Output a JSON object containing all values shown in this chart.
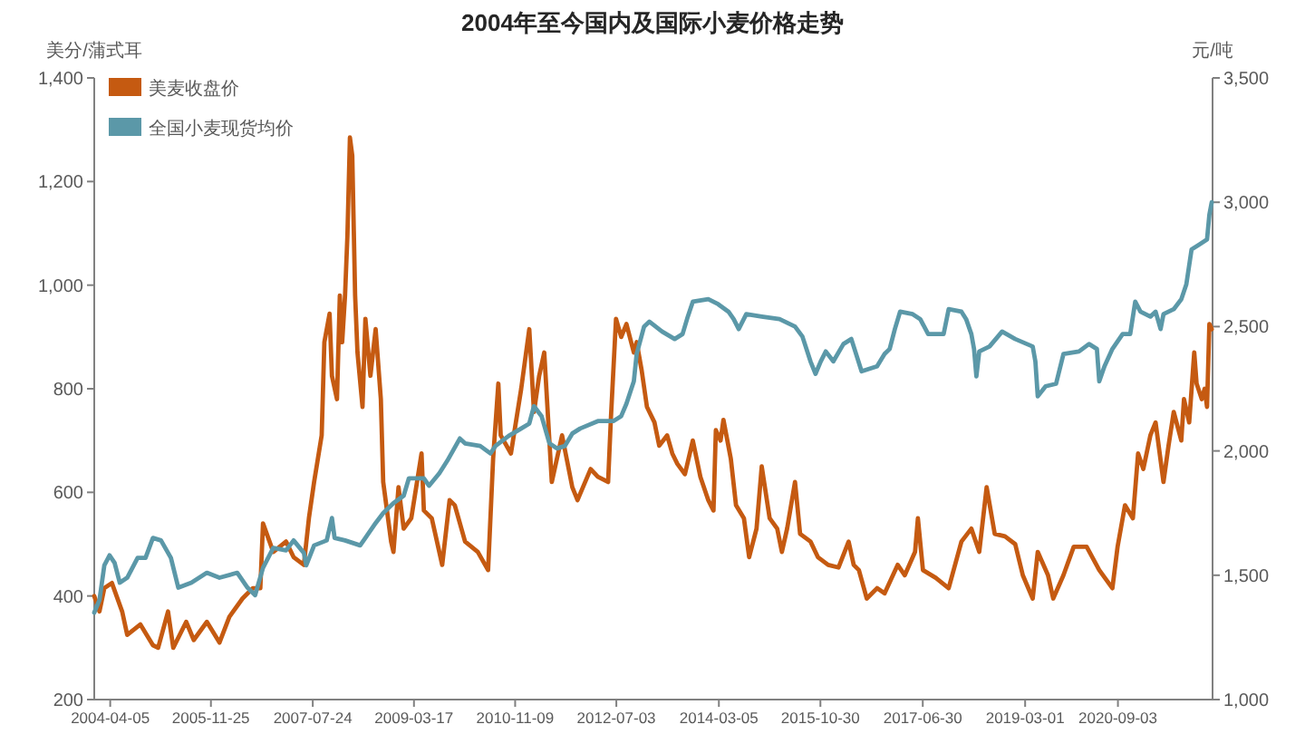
{
  "chart_data": {
    "type": "line",
    "title": "2004年至今国内及国际小麦价格走势",
    "ylabel": "美分/蒲式耳",
    "y2label": "元/吨",
    "xlim": [
      "2004-01-01",
      "2022-03-20"
    ],
    "xticks": [
      "2004-04-05",
      "2005-11-25",
      "2007-07-24",
      "2009-03-17",
      "2010-11-09",
      "2012-07-03",
      "2014-03-05",
      "2015-10-30",
      "2017-06-30",
      "2019-03-01",
      "2020-09-03"
    ],
    "ylim": [
      200,
      1400
    ],
    "yticks": [
      200,
      400,
      600,
      800,
      {
        "value": 1000,
        "label": "1,000"
      },
      {
        "value": 1200,
        "label": "1,200"
      },
      {
        "value": 1400,
        "label": "1,400"
      }
    ],
    "y2lim": [
      1000,
      3500
    ],
    "y2ticks": [
      {
        "value": 1000,
        "label": "1,000"
      },
      {
        "value": 1500,
        "label": "1,500"
      },
      {
        "value": 2000,
        "label": "2,000"
      },
      {
        "value": 2500,
        "label": "2,500"
      },
      {
        "value": 3000,
        "label": "3,000"
      },
      {
        "value": 3500,
        "label": "3,500"
      }
    ],
    "legend": "top left",
    "line_style": "solid",
    "series": [
      {
        "name": "美麦收盘价",
        "color": "#c55a11",
        "x": [
          "2004-01-01",
          "2004-02-01",
          "2004-03-01",
          "2004-04-15",
          "2004-06-15",
          "2004-07-15",
          "2004-10-01",
          "2004-12-15",
          "2005-01-15",
          "2005-03-15",
          "2005-04-15",
          "2005-07-01",
          "2005-08-15",
          "2005-11-01",
          "2006-01-15",
          "2006-03-15",
          "2006-06-01",
          "2006-08-01",
          "2006-09-15",
          "2006-10-01",
          "2006-12-01",
          "2007-02-15",
          "2007-04-01",
          "2007-06-01",
          "2007-07-01",
          "2007-08-01",
          "2007-09-15",
          "2007-10-01",
          "2007-11-01",
          "2007-11-15",
          "2007-12-15",
          "2008-01-01",
          "2008-01-15",
          "2008-02-01",
          "2008-02-15",
          "2008-03-01",
          "2008-03-15",
          "2008-04-01",
          "2008-04-15",
          "2008-05-15",
          "2008-06-01",
          "2008-07-01",
          "2008-08-01",
          "2008-09-01",
          "2008-09-15",
          "2008-11-01",
          "2008-11-15",
          "2008-12-15",
          "2009-01-15",
          "2009-03-01",
          "2009-05-01",
          "2009-05-15",
          "2009-07-01",
          "2009-09-01",
          "2009-10-15",
          "2009-11-15",
          "2010-01-15",
          "2010-04-01",
          "2010-06-01",
          "2010-07-01",
          "2010-08-01",
          "2010-08-15",
          "2010-10-15",
          "2010-12-15",
          "2011-02-01",
          "2011-03-01",
          "2011-04-01",
          "2011-05-01",
          "2011-06-15",
          "2011-08-15",
          "2011-10-15",
          "2011-11-15",
          "2012-02-01",
          "2012-03-15",
          "2012-05-15",
          "2012-06-01",
          "2012-07-01",
          "2012-08-01",
          "2012-09-01",
          "2012-10-15",
          "2012-11-01",
          "2012-12-01",
          "2013-01-01",
          "2013-02-15",
          "2013-03-15",
          "2013-05-01",
          "2013-06-01",
          "2013-07-01",
          "2013-08-15",
          "2013-10-01",
          "2013-11-15",
          "2014-01-01",
          "2014-02-01",
          "2014-02-15",
          "2014-03-15",
          "2014-04-01",
          "2014-05-15",
          "2014-06-15",
          "2014-08-01",
          "2014-09-01",
          "2014-10-15",
          "2014-11-15",
          "2015-01-01",
          "2015-02-15",
          "2015-03-15",
          "2015-04-15",
          "2015-06-01",
          "2015-07-01",
          "2015-09-01",
          "2015-10-15",
          "2015-12-15",
          "2016-02-15",
          "2016-04-15",
          "2016-05-15",
          "2016-06-15",
          "2016-08-01",
          "2016-10-01",
          "2016-11-15",
          "2017-02-01",
          "2017-03-15",
          "2017-05-15",
          "2017-06-01",
          "2017-07-01",
          "2017-09-15",
          "2017-12-01",
          "2018-02-15",
          "2018-04-15",
          "2018-06-01",
          "2018-07-15",
          "2018-09-01",
          "2018-11-01",
          "2019-01-01",
          "2019-02-15",
          "2019-04-15",
          "2019-05-15",
          "2019-07-15",
          "2019-08-15",
          "2019-10-15",
          "2019-12-15",
          "2020-03-01",
          "2020-05-15",
          "2020-08-01",
          "2020-09-01",
          "2020-10-15",
          "2020-12-01",
          "2021-01-01",
          "2021-02-01",
          "2021-03-15",
          "2021-04-15",
          "2021-06-01",
          "2021-07-01",
          "2021-08-01",
          "2021-09-15",
          "2021-10-01",
          "2021-11-01",
          "2021-12-01",
          "2021-12-15",
          "2022-01-15",
          "2022-02-01",
          "2022-02-15",
          "2022-03-01",
          "2022-03-15"
        ],
        "values": [
          400,
          370,
          415,
          425,
          370,
          325,
          345,
          305,
          300,
          370,
          300,
          350,
          315,
          350,
          310,
          360,
          395,
          415,
          415,
          540,
          485,
          505,
          475,
          460,
          550,
          620,
          710,
          890,
          945,
          825,
          780,
          980,
          890,
          980,
          1095,
          1285,
          1250,
          980,
          870,
          765,
          935,
          825,
          915,
          780,
          620,
          505,
          485,
          610,
          530,
          550,
          675,
          565,
          550,
          460,
          585,
          575,
          505,
          485,
          450,
          665,
          810,
          710,
          675,
          800,
          915,
          755,
          825,
          870,
          620,
          710,
          610,
          585,
          645,
          630,
          620,
          745,
          935,
          900,
          925,
          870,
          890,
          835,
          765,
          735,
          690,
          710,
          675,
          655,
          635,
          700,
          630,
          585,
          565,
          720,
          700,
          740,
          665,
          575,
          550,
          475,
          530,
          650,
          550,
          530,
          485,
          530,
          620,
          520,
          505,
          475,
          460,
          455,
          505,
          460,
          450,
          395,
          415,
          405,
          460,
          440,
          485,
          550,
          450,
          435,
          415,
          505,
          530,
          485,
          610,
          520,
          515,
          500,
          440,
          395,
          485,
          440,
          395,
          440,
          495,
          495,
          450,
          415,
          495,
          575,
          550,
          675,
          645,
          710,
          735,
          620,
          690,
          755,
          700,
          780,
          735,
          870,
          810,
          780,
          800,
          765,
          925,
          915
        ]
      },
      {
        "name": "全国小麦现货均价",
        "color": "#5b98a8",
        "axis": "y2",
        "x": [
          "2004-01-01",
          "2004-02-01",
          "2004-03-01",
          "2004-04-01",
          "2004-05-01",
          "2004-06-01",
          "2004-07-15",
          "2004-09-15",
          "2004-11-01",
          "2004-12-15",
          "2005-02-01",
          "2005-04-01",
          "2005-05-15",
          "2005-08-01",
          "2005-11-01",
          "2006-01-15",
          "2006-05-01",
          "2006-07-01",
          "2006-08-15",
          "2006-10-01",
          "2006-12-01",
          "2007-02-15",
          "2007-04-01",
          "2007-06-01",
          "2007-06-15",
          "2007-08-01",
          "2007-10-15",
          "2007-11-15",
          "2007-12-01",
          "2008-02-01",
          "2008-05-01",
          "2008-06-01",
          "2008-08-01",
          "2008-09-15",
          "2008-11-15",
          "2009-01-15",
          "2009-02-15",
          "2009-05-15",
          "2009-06-15",
          "2009-08-15",
          "2009-10-01",
          "2009-12-15",
          "2010-01-15",
          "2010-04-15",
          "2010-06-15",
          "2010-07-15",
          "2010-10-01",
          "2010-12-15",
          "2011-02-01",
          "2011-03-01",
          "2011-04-15",
          "2011-06-01",
          "2011-07-15",
          "2011-09-01",
          "2011-10-15",
          "2011-12-01",
          "2012-03-15",
          "2012-06-15",
          "2012-08-01",
          "2012-09-01",
          "2012-10-15",
          "2012-11-01",
          "2012-12-15",
          "2013-01-15",
          "2013-04-01",
          "2013-06-15",
          "2013-08-01",
          "2013-09-01",
          "2013-10-01",
          "2014-01-01",
          "2014-03-01",
          "2014-05-01",
          "2014-06-01",
          "2014-07-01",
          "2014-08-15",
          "2014-11-15",
          "2015-03-01",
          "2015-06-01",
          "2015-07-15",
          "2015-09-01",
          "2015-10-01",
          "2015-11-01",
          "2015-12-01",
          "2016-01-15",
          "2016-03-15",
          "2016-05-01",
          "2016-07-01",
          "2016-10-01",
          "2016-11-15",
          "2016-12-15",
          "2017-01-15",
          "2017-02-15",
          "2017-05-01",
          "2017-06-15",
          "2017-08-01",
          "2017-11-01",
          "2017-12-01",
          "2018-02-15",
          "2018-03-15",
          "2018-04-15",
          "2018-05-01",
          "2018-05-15",
          "2018-06-01",
          "2018-08-01",
          "2018-10-15",
          "2019-01-01",
          "2019-04-15",
          "2019-05-01",
          "2019-05-15",
          "2019-07-01",
          "2019-09-01",
          "2019-10-15",
          "2020-01-15",
          "2020-03-15",
          "2020-05-01",
          "2020-05-15",
          "2020-06-15",
          "2020-08-01",
          "2020-10-01",
          "2020-11-15",
          "2020-12-15",
          "2021-01-15",
          "2021-03-15",
          "2021-04-15",
          "2021-05-15",
          "2021-06-01",
          "2021-08-01",
          "2021-09-15",
          "2021-10-15",
          "2021-11-15",
          "2022-01-01",
          "2022-02-15",
          "2022-03-01",
          "2022-03-15"
        ],
        "values": [
          1350,
          1400,
          1540,
          1580,
          1550,
          1470,
          1490,
          1570,
          1570,
          1650,
          1640,
          1570,
          1450,
          1470,
          1510,
          1490,
          1510,
          1450,
          1420,
          1530,
          1610,
          1600,
          1640,
          1590,
          1540,
          1620,
          1640,
          1730,
          1650,
          1640,
          1620,
          1650,
          1710,
          1750,
          1790,
          1820,
          1890,
          1890,
          1860,
          1910,
          1960,
          2050,
          2030,
          2020,
          1990,
          2020,
          2060,
          2090,
          2110,
          2180,
          2140,
          2030,
          2010,
          2020,
          2070,
          2090,
          2120,
          2120,
          2140,
          2190,
          2280,
          2390,
          2500,
          2520,
          2480,
          2450,
          2470,
          2540,
          2600,
          2610,
          2590,
          2560,
          2530,
          2490,
          2550,
          2540,
          2530,
          2500,
          2460,
          2360,
          2310,
          2360,
          2400,
          2360,
          2430,
          2450,
          2320,
          2340,
          2390,
          2410,
          2490,
          2560,
          2550,
          2530,
          2470,
          2470,
          2570,
          2560,
          2530,
          2470,
          2410,
          2300,
          2400,
          2420,
          2480,
          2450,
          2420,
          2360,
          2220,
          2260,
          2270,
          2390,
          2400,
          2430,
          2410,
          2280,
          2340,
          2410,
          2470,
          2470,
          2600,
          2560,
          2540,
          2560,
          2490,
          2550,
          2570,
          2610,
          2670,
          2810,
          2830,
          2850,
          2950,
          3000
        ]
      }
    ]
  }
}
